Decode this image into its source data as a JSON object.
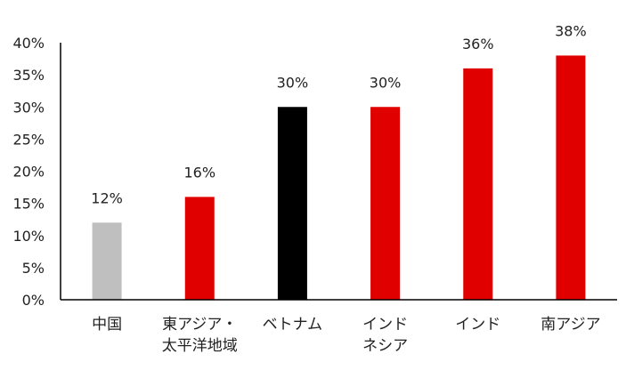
{
  "chart_data": {
    "type": "bar",
    "title": "",
    "xlabel": "",
    "ylabel": "",
    "ylim": [
      0,
      40
    ],
    "yticks": [
      "0%",
      "5%",
      "10%",
      "15%",
      "20%",
      "25%",
      "30%",
      "35%",
      "40%"
    ],
    "y_tick_values": [
      0,
      5,
      10,
      15,
      20,
      25,
      30,
      35,
      40
    ],
    "grid": false,
    "legend": "none",
    "categories": [
      [
        "中国"
      ],
      [
        "東アジア・",
        "太平洋地域"
      ],
      [
        "ベトナム"
      ],
      [
        "インド",
        "ネシア"
      ],
      [
        "インド"
      ],
      [
        "南アジア"
      ]
    ],
    "values": [
      12,
      16,
      30,
      30,
      36,
      38
    ],
    "data_labels": [
      "12%",
      "16%",
      "30%",
      "30%",
      "36%",
      "38%"
    ],
    "bar_colors": [
      "#bfbfbf",
      "#e00000",
      "#000000",
      "#e00000",
      "#e00000",
      "#e00000"
    ]
  }
}
